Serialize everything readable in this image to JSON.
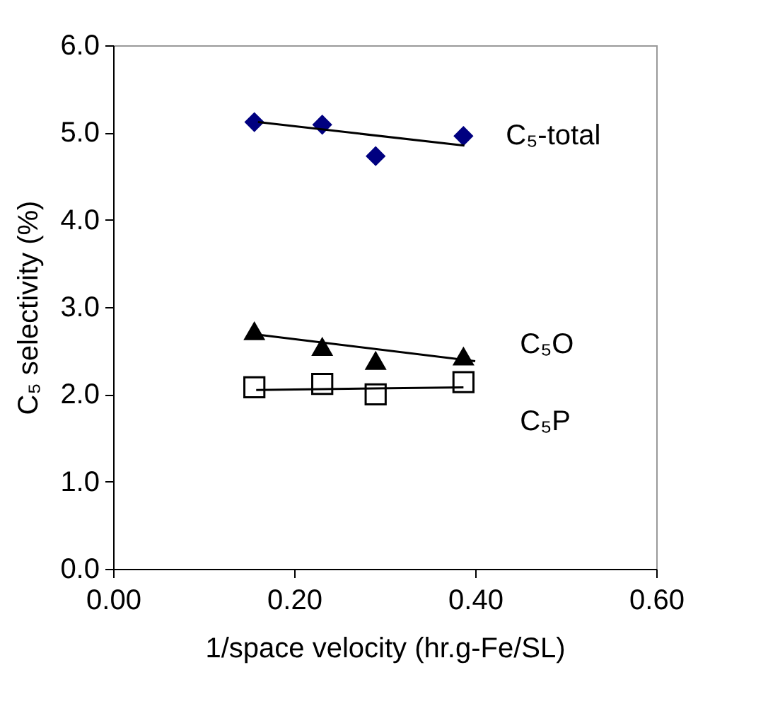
{
  "chart_data": {
    "type": "scatter",
    "xlabel": "1/space velocity (hr.g-Fe/SL)",
    "ylabel": "C₅ selectivity (%)",
    "x": [
      0.156,
      0.231,
      0.29,
      0.387
    ],
    "xlim": [
      0,
      0.6
    ],
    "xticks": [
      {
        "value": 0,
        "label": "0.00"
      },
      {
        "value": 0.2,
        "label": "0.20"
      },
      {
        "value": 0.4,
        "label": "0.40"
      },
      {
        "value": 0.6,
        "label": "0.60"
      }
    ],
    "ylim": [
      0,
      6
    ],
    "yticks": [
      {
        "value": 0,
        "label": "0.0"
      },
      {
        "value": 1,
        "label": "1.0"
      },
      {
        "value": 2,
        "label": "2.0"
      },
      {
        "value": 3,
        "label": "3.0"
      },
      {
        "value": 4,
        "label": "4.0"
      },
      {
        "value": 5,
        "label": "5.0"
      },
      {
        "value": 6,
        "label": "6.0"
      }
    ],
    "grid": false,
    "legend": false,
    "series": [
      {
        "name": "C₅-total",
        "color": "#000080",
        "marker": "diamond",
        "values": [
          5.12,
          5.09,
          4.73,
          4.96
        ]
      },
      {
        "name": "C₅O",
        "color": "#000000",
        "marker": "triangle",
        "values": [
          2.73,
          2.55,
          2.39,
          2.44
        ]
      },
      {
        "name": "C₅P",
        "color": "#000000",
        "marker": "square",
        "values": [
          2.08,
          2.12,
          2.0,
          2.14
        ]
      },
      {
        "type": "line",
        "color": "#000000",
        "marker": "none",
        "x": [
          0.16,
          0.388
        ],
        "values": [
          5.12,
          4.85
        ]
      },
      {
        "type": "line",
        "color": "#000000",
        "marker": "none",
        "x": [
          0.163,
          0.4
        ],
        "values": [
          2.68,
          2.38
        ]
      },
      {
        "type": "line",
        "color": "#000000",
        "marker": "none",
        "x": [
          0.158,
          0.387
        ],
        "values": [
          2.05,
          2.08
        ]
      }
    ]
  }
}
